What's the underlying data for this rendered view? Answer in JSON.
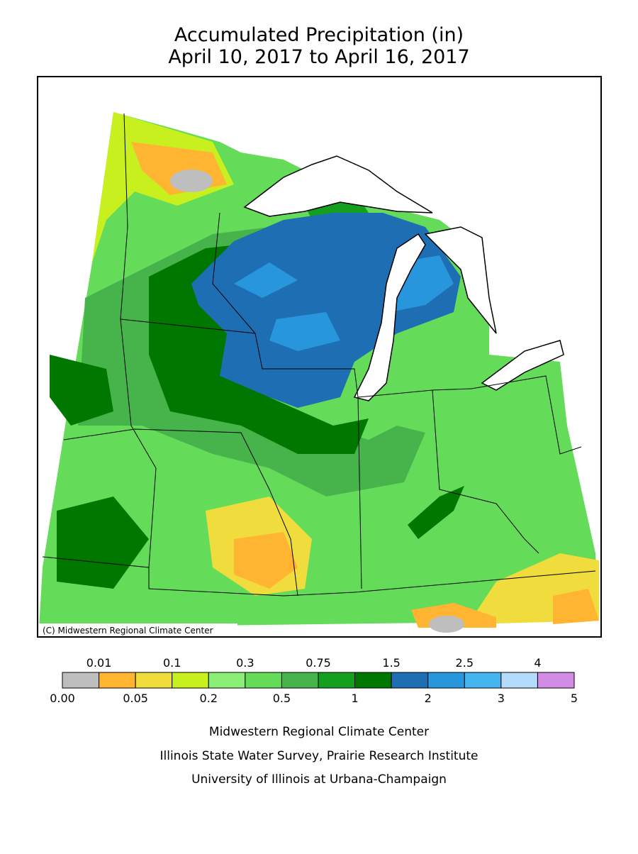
{
  "title": [
    "Accumulated Precipitation (in)",
    "April 10, 2017 to April 16, 2017"
  ],
  "map": {
    "copyright": "(C) Midwestern Regional Climate Center"
  },
  "legend": {
    "colors": [
      "#bebebe",
      "#ffb432",
      "#f0dc3c",
      "#c8f01e",
      "#8cf078",
      "#64dc5a",
      "#46b44b",
      "#14a01e",
      "#007800",
      "#1e6eb4",
      "#2896dc",
      "#46b4f0",
      "#b4dcfa",
      "#d28ce6"
    ],
    "upper_labels": [
      "0.01",
      "0.1",
      "0.3",
      "0.75",
      "1.5",
      "2.5",
      "4"
    ],
    "lower_labels": [
      "0.00",
      "0.05",
      "0.2",
      "0.5",
      "1",
      "2",
      "3",
      "5"
    ]
  },
  "credits": [
    "Midwestern Regional Climate Center",
    "Illinois State Water Survey, Prairie Research Institute",
    "University of Illinois at Urbana-Champaign"
  ]
}
